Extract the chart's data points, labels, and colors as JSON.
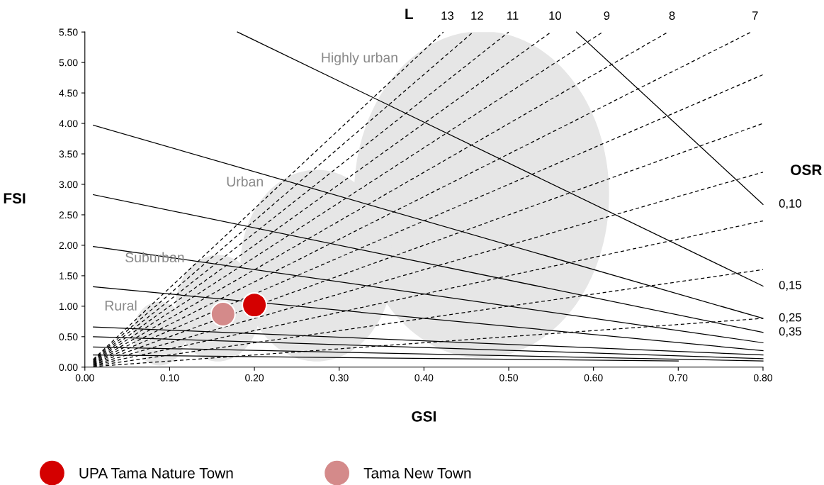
{
  "chart_data": {
    "type": "scatter",
    "xlabel": "GSI",
    "ylabel": "FSI",
    "xlim": [
      0,
      0.8
    ],
    "ylim": [
      0,
      5.5
    ],
    "xticks": [
      {
        "value": 0,
        "label": "0.00"
      },
      {
        "value": 0.1,
        "label": "0.10"
      },
      {
        "value": 0.2,
        "label": "0.20"
      },
      {
        "value": 0.3,
        "label": "0.30"
      },
      {
        "value": 0.4,
        "label": "0.40"
      },
      {
        "value": 0.5,
        "label": "0.50"
      },
      {
        "value": 0.6,
        "label": "0.60"
      },
      {
        "value": 0.7,
        "label": "0.70"
      },
      {
        "value": 0.8,
        "label": "0.80"
      }
    ],
    "yticks": [
      {
        "value": 0,
        "label": "0.00"
      },
      {
        "value": 0.5,
        "label": "0.50"
      },
      {
        "value": 1,
        "label": "1.00"
      },
      {
        "value": 1.5,
        "label": "1.50"
      },
      {
        "value": 2,
        "label": "2.00"
      },
      {
        "value": 2.5,
        "label": "2.50"
      },
      {
        "value": 3,
        "label": "3.00"
      },
      {
        "value": 3.5,
        "label": "3.50"
      },
      {
        "value": 4,
        "label": "4.00"
      },
      {
        "value": 4.5,
        "label": "4.50"
      },
      {
        "value": 5,
        "label": "5.00"
      },
      {
        "value": 5.5,
        "label": "5.50"
      }
    ],
    "grid": false,
    "legend": "bottom",
    "annotations": [
      "L",
      "OSR",
      "Highly urban",
      "Urban",
      "Suburban",
      "Rural"
    ],
    "series": [
      {
        "type": "line",
        "line_style": "dashed",
        "color": "#000000",
        "x": [
          0.01,
          0.8
        ],
        "values": [
          0.01,
          0.8
        ]
      },
      {
        "type": "line",
        "line_style": "dashed",
        "color": "#000000",
        "x": [
          0.01,
          0.8
        ],
        "values": [
          0.02,
          1.6
        ]
      },
      {
        "type": "line",
        "line_style": "dashed",
        "color": "#000000",
        "x": [
          0.01,
          0.8
        ],
        "values": [
          0.03,
          2.4
        ]
      },
      {
        "type": "line",
        "line_style": "dashed",
        "color": "#000000",
        "x": [
          0.01,
          0.8
        ],
        "values": [
          0.04,
          3.2
        ]
      },
      {
        "type": "line",
        "line_style": "dashed",
        "color": "#000000",
        "x": [
          0.01,
          0.8
        ],
        "values": [
          0.05,
          4.0
        ]
      },
      {
        "type": "line",
        "line_style": "dashed",
        "color": "#000000",
        "x": [
          0.01,
          0.8
        ],
        "values": [
          0.06,
          4.8
        ]
      },
      {
        "type": "line",
        "line_style": "dashed",
        "color": "#000000",
        "name": "7",
        "x": [
          0.01,
          0.786
        ],
        "values": [
          0.07,
          5.5
        ]
      },
      {
        "type": "line",
        "line_style": "dashed",
        "color": "#000000",
        "name": "8",
        "x": [
          0.01,
          0.688
        ],
        "values": [
          0.08,
          5.5
        ]
      },
      {
        "type": "line",
        "line_style": "dashed",
        "color": "#000000",
        "name": "9",
        "x": [
          0.01,
          0.611
        ],
        "values": [
          0.09,
          5.5
        ]
      },
      {
        "type": "line",
        "line_style": "dashed",
        "color": "#000000",
        "name": "10",
        "x": [
          0.01,
          0.55
        ],
        "values": [
          0.1,
          5.5
        ]
      },
      {
        "type": "line",
        "line_style": "dashed",
        "color": "#000000",
        "name": "11",
        "x": [
          0.01,
          0.5
        ],
        "values": [
          0.11,
          5.5
        ]
      },
      {
        "type": "line",
        "line_style": "dashed",
        "color": "#000000",
        "name": "12",
        "x": [
          0.01,
          0.458
        ],
        "values": [
          0.12,
          5.5
        ]
      },
      {
        "type": "line",
        "line_style": "dashed",
        "color": "#000000",
        "name": "13",
        "x": [
          0.01,
          0.423
        ],
        "values": [
          0.13,
          5.5
        ]
      },
      {
        "type": "line",
        "line_style": "solid",
        "color": "#000000",
        "name": "0,10",
        "x": [
          0.58,
          0.8
        ],
        "values": [
          5.5,
          2.67
        ]
      },
      {
        "type": "line",
        "line_style": "solid",
        "color": "#000000",
        "name": "0,15",
        "x": [
          0.18,
          0.8
        ],
        "values": [
          5.5,
          1.33
        ]
      },
      {
        "type": "line",
        "line_style": "solid",
        "color": "#000000",
        "name": "0,25",
        "x": [
          0.01,
          0.8
        ],
        "values": [
          3.97,
          0.8
        ]
      },
      {
        "type": "line",
        "line_style": "solid",
        "color": "#000000",
        "name": "0,35",
        "x": [
          0.01,
          0.8
        ],
        "values": [
          2.83,
          0.57
        ]
      },
      {
        "type": "line",
        "line_style": "solid",
        "color": "#000000",
        "x": [
          0.01,
          0.8
        ],
        "values": [
          1.98,
          0.4
        ]
      },
      {
        "type": "line",
        "line_style": "solid",
        "color": "#000000",
        "x": [
          0.01,
          0.8
        ],
        "values": [
          1.32,
          0.27
        ]
      },
      {
        "type": "line",
        "line_style": "solid",
        "color": "#000000",
        "x": [
          0.01,
          0.8
        ],
        "values": [
          0.66,
          0.2
        ]
      },
      {
        "type": "line",
        "line_style": "solid",
        "color": "#000000",
        "x": [
          0.01,
          0.8
        ],
        "values": [
          0.5,
          0.14
        ]
      },
      {
        "type": "line",
        "line_style": "solid",
        "color": "#000000",
        "x": [
          0.01,
          0.8
        ],
        "values": [
          0.33,
          0.1
        ]
      },
      {
        "type": "line",
        "line_style": "solid",
        "color": "#000000",
        "x": [
          0.01,
          0.7
        ],
        "values": [
          0.2,
          0.1
        ]
      },
      {
        "name": "UPA Tama Nature Town",
        "color": "#d40000",
        "marker": "circle",
        "x": [
          0.2
        ],
        "values": [
          1.02
        ]
      },
      {
        "name": "Tama New Town",
        "color": "#d48a8a",
        "marker": "circle",
        "x": [
          0.163
        ],
        "values": [
          0.87
        ]
      }
    ]
  }
}
